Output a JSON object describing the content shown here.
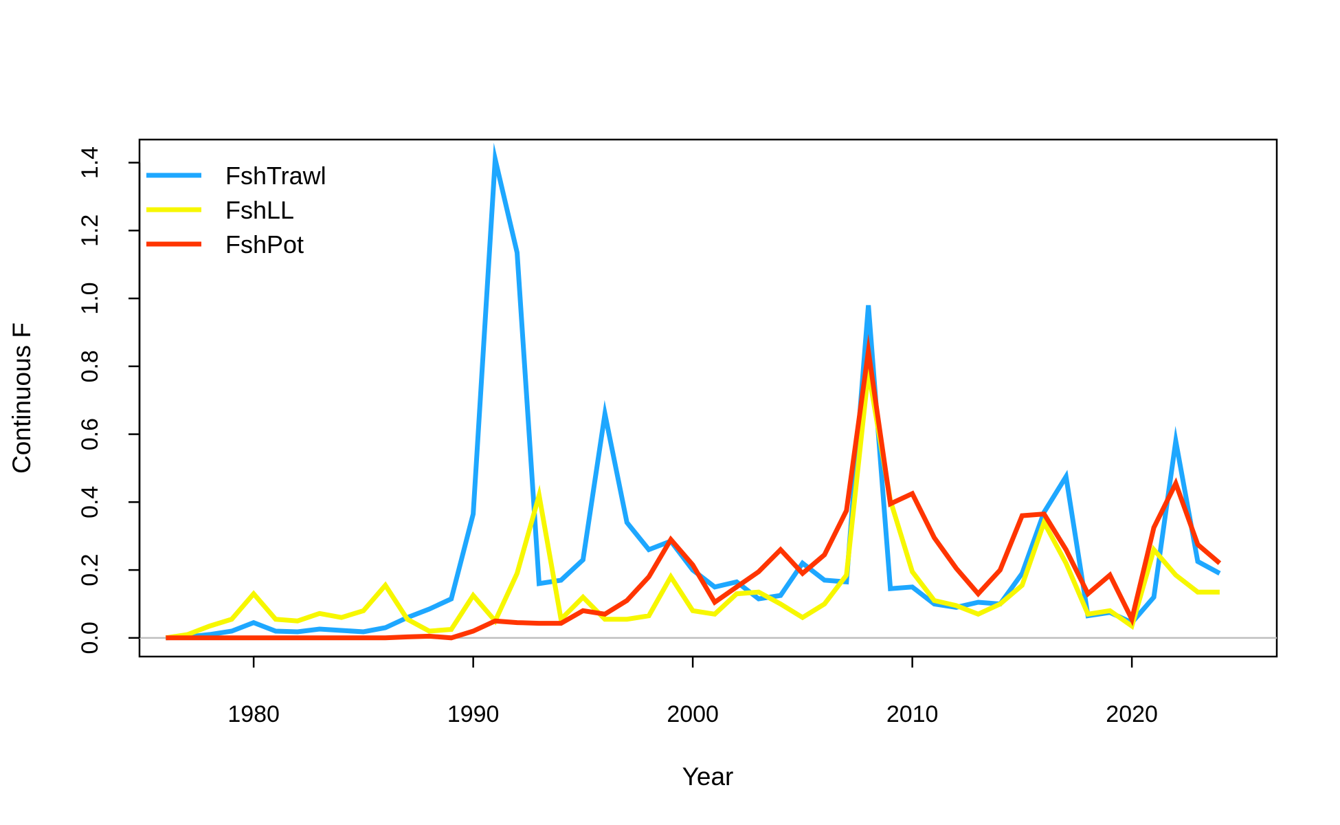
{
  "chart_data": {
    "type": "line",
    "title": "",
    "xlabel": "Year",
    "ylabel": "Continuous F",
    "xlim": [
      1974.8,
      2026.6
    ],
    "ylim": [
      -0.055,
      1.468
    ],
    "xticks": [
      1980,
      1990,
      2000,
      2010,
      2020
    ],
    "yticks": [
      0.0,
      0.2,
      0.4,
      0.6,
      0.8,
      1.0,
      1.2,
      1.4
    ],
    "ytick_labels": [
      "0.0",
      "0.2",
      "0.4",
      "0.6",
      "0.8",
      "1.0",
      "1.2",
      "1.4"
    ],
    "grid": false,
    "reference_line": {
      "y": 0,
      "color": "#bebebe"
    },
    "legend": {
      "placement": "top-left"
    },
    "x": [
      1976,
      1977,
      1978,
      1979,
      1980,
      1981,
      1982,
      1983,
      1984,
      1985,
      1986,
      1987,
      1988,
      1989,
      1990,
      1991,
      1992,
      1993,
      1994,
      1995,
      1996,
      1997,
      1998,
      1999,
      2000,
      2001,
      2002,
      2003,
      2004,
      2005,
      2006,
      2007,
      2008,
      2009,
      2010,
      2011,
      2012,
      2013,
      2014,
      2015,
      2016,
      2017,
      2018,
      2019,
      2020,
      2021,
      2022,
      2023,
      2024
    ],
    "series": [
      {
        "name": "FshTrawl",
        "color": "#1ea7ff",
        "values": [
          0.0,
          0.003,
          0.01,
          0.02,
          0.045,
          0.02,
          0.018,
          0.026,
          0.022,
          0.018,
          0.03,
          0.06,
          0.085,
          0.115,
          0.365,
          1.41,
          1.135,
          0.16,
          0.17,
          0.23,
          0.66,
          0.34,
          0.26,
          0.285,
          0.2,
          0.15,
          0.165,
          0.115,
          0.125,
          0.22,
          0.17,
          0.165,
          0.98,
          0.145,
          0.15,
          0.1,
          0.09,
          0.105,
          0.1,
          0.19,
          0.37,
          0.475,
          0.065,
          0.075,
          0.045,
          0.12,
          0.58,
          0.225,
          0.19
        ]
      },
      {
        "name": "FshLL",
        "color": "#f7f700",
        "values": [
          0.0,
          0.01,
          0.035,
          0.055,
          0.13,
          0.055,
          0.05,
          0.072,
          0.06,
          0.08,
          0.155,
          0.055,
          0.02,
          0.025,
          0.125,
          0.05,
          0.19,
          0.42,
          0.055,
          0.12,
          0.055,
          0.055,
          0.065,
          0.18,
          0.08,
          0.07,
          0.13,
          0.135,
          0.1,
          0.06,
          0.1,
          0.185,
          0.785,
          0.405,
          0.195,
          0.11,
          0.095,
          0.07,
          0.1,
          0.155,
          0.34,
          0.22,
          0.07,
          0.08,
          0.035,
          0.26,
          0.185,
          0.135,
          0.135
        ]
      },
      {
        "name": "FshPot",
        "color": "#ff3500",
        "values": [
          0.0,
          0.0,
          0.0,
          0.0,
          0.0,
          0.0,
          0.0,
          0.0,
          0.0,
          0.0,
          0.0,
          0.003,
          0.005,
          0.0,
          0.02,
          0.05,
          0.045,
          0.043,
          0.043,
          0.08,
          0.07,
          0.11,
          0.18,
          0.29,
          0.215,
          0.105,
          0.15,
          0.195,
          0.26,
          0.19,
          0.245,
          0.375,
          0.845,
          0.395,
          0.425,
          0.295,
          0.205,
          0.13,
          0.2,
          0.36,
          0.365,
          0.26,
          0.13,
          0.185,
          0.055,
          0.325,
          0.455,
          0.275,
          0.22
        ]
      }
    ]
  }
}
